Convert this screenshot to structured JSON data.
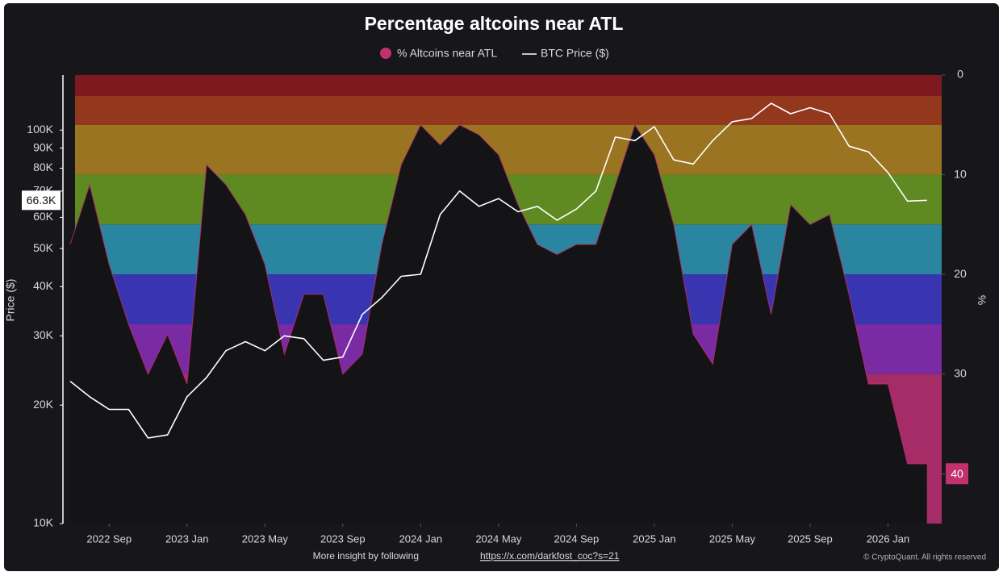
{
  "chart_data": {
    "type": "line",
    "title": "Percentage altcoins near ATL",
    "watermark": "CryptoQuant",
    "footer": "More insight by following",
    "footer_link": "https://x.com/darkfost_coc?s=21",
    "copyright": "© CryptoQuant. All rights reserved",
    "ylabel": "Price ($)",
    "y2label": "%",
    "log_scale": true,
    "categories": [
      null,
      null,
      "2022 Sep",
      null,
      null,
      null,
      "2023 Jan",
      null,
      null,
      null,
      "2023 May",
      null,
      null,
      null,
      "2023 Sep",
      null,
      null,
      null,
      "2024 Jan",
      null,
      null,
      null,
      "2024 May",
      null,
      null,
      null,
      "2024 Sep",
      null,
      null,
      null,
      "2025 Jan",
      null,
      null,
      null,
      "2025 May",
      null,
      null,
      null,
      "2025 Sep",
      null,
      null,
      null,
      "2026 Jan",
      null,
      null
    ],
    "series": [
      {
        "name": "% Altcoins near ATL",
        "color": "#c2306e",
        "axis": "y2",
        "values": [
          17,
          11,
          19,
          25,
          30,
          26,
          31,
          9,
          11,
          14,
          19,
          28,
          22,
          22,
          30,
          28,
          17,
          9,
          5,
          7,
          5,
          6,
          8,
          13,
          17,
          18,
          17,
          17,
          11,
          5,
          8,
          15,
          26,
          29,
          17,
          15,
          24,
          13,
          15,
          14,
          22,
          31,
          31,
          39,
          39
        ]
      },
      {
        "name": "BTC Price ($)",
        "color": "#ffffff",
        "values": [
          23000,
          21000,
          19500,
          19500,
          16500,
          16800,
          21000,
          23500,
          27500,
          29000,
          27500,
          30000,
          29500,
          26000,
          26500,
          34000,
          37500,
          42500,
          43000,
          61000,
          70000,
          64000,
          67000,
          62000,
          64000,
          59000,
          63000,
          70000,
          96000,
          94000,
          102000,
          84000,
          82000,
          94000,
          105000,
          107000,
          117000,
          110000,
          114000,
          110000,
          91000,
          88000,
          78000,
          66000,
          66300
        ]
      }
    ],
    "ylim": [
      10000,
      138000
    ],
    "yticks": [
      {
        "value": 10000,
        "label": "10K"
      },
      {
        "value": 20000,
        "label": "20K"
      },
      {
        "value": 30000,
        "label": "30K"
      },
      {
        "value": 40000,
        "label": "40K"
      },
      {
        "value": 50000,
        "label": "50K"
      },
      {
        "value": 60000,
        "label": "60K"
      },
      {
        "value": 70000,
        "label": "70K"
      },
      {
        "value": 80000,
        "label": "80K"
      },
      {
        "value": 90000,
        "label": "90K"
      },
      {
        "value": 100000,
        "label": "100K"
      }
    ],
    "y2lim": [
      45,
      0
    ],
    "y2ticks": [
      0,
      10,
      20,
      30,
      40
    ],
    "price_marker": {
      "value": 66300,
      "label": "66.3K"
    },
    "pct_marker": 40,
    "bands": [
      {
        "from": 0,
        "to": 2.1,
        "color": "#7e1a1f"
      },
      {
        "from": 2.1,
        "to": 5,
        "color": "#93371d"
      },
      {
        "from": 5,
        "to": 10,
        "color": "#9a7420"
      },
      {
        "from": 10,
        "to": 15,
        "color": "#5f8a22"
      },
      {
        "from": 15,
        "to": 20,
        "color": "#2a86a0"
      },
      {
        "from": 20,
        "to": 25,
        "color": "#3934b0"
      },
      {
        "from": 25,
        "to": 30,
        "color": "#7a2aa3"
      },
      {
        "from": 30,
        "to": 45,
        "color": "#a52c66"
      }
    ]
  }
}
